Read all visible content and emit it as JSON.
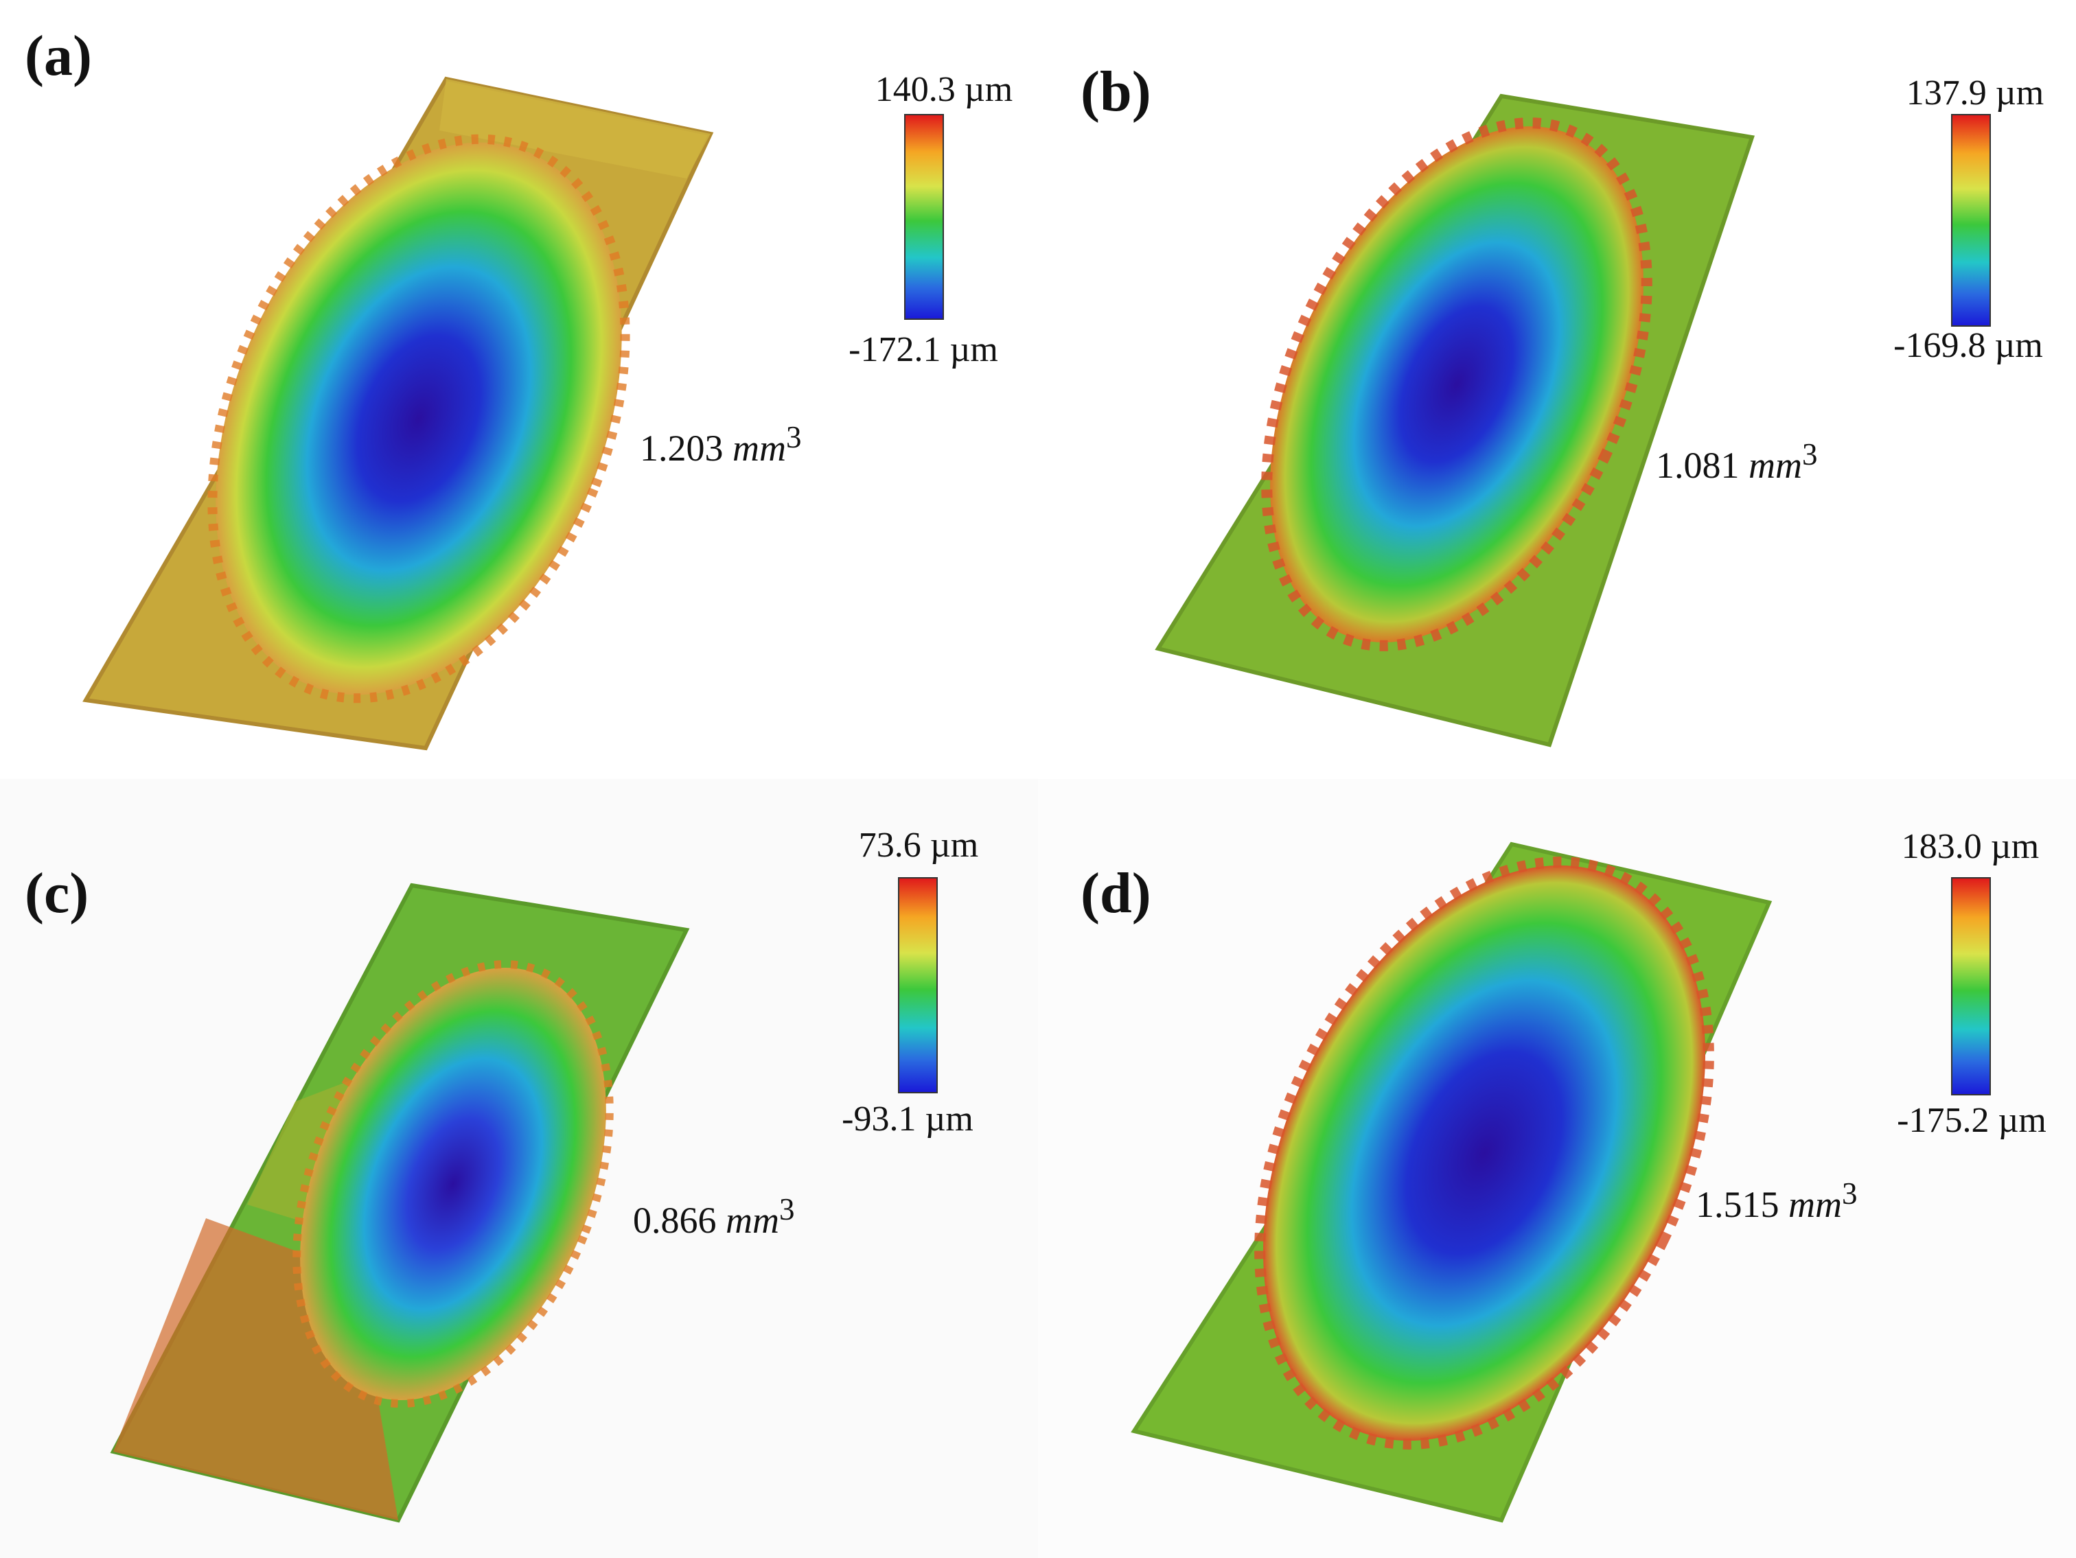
{
  "panels": [
    {
      "label": "(a)",
      "max": "140.3 µm",
      "min": "-172.1 µm",
      "volume": "1.203",
      "unit": "mm",
      "exp": "3"
    },
    {
      "label": "(b)",
      "max": "137.9 µm",
      "min": "-169.8 µm",
      "volume": "1.081",
      "unit": "mm",
      "exp": "3"
    },
    {
      "label": "(c)",
      "max": "73.6 µm",
      "min": "-93.1 µm",
      "volume": "0.866",
      "unit": "mm",
      "exp": "3"
    },
    {
      "label": "(d)",
      "max": "183.0 µm",
      "min": "-175.2 µm",
      "volume": "1.515",
      "unit": "mm",
      "exp": "3"
    }
  ],
  "colors": {
    "red": "#e01b1b",
    "orange": "#f5a623",
    "yellow": "#d8e34a",
    "green": "#3cc83c",
    "cyan": "#23c6c8",
    "blue": "#2a6ae0",
    "violet": "#3a1aa8"
  }
}
